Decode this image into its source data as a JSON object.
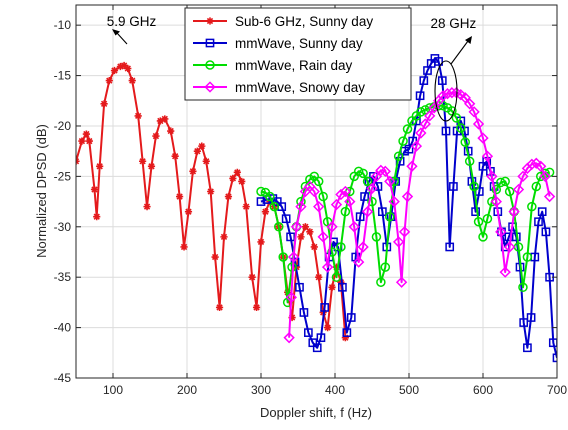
{
  "chart_data": {
    "type": "line",
    "title": "",
    "xlabel": "Doppler shift, f (Hz)",
    "ylabel": "Normalized DPSD (dB)",
    "xlim": [
      50,
      700
    ],
    "ylim": [
      -45,
      -8
    ],
    "xticks": [
      100,
      200,
      300,
      400,
      500,
      600,
      700
    ],
    "yticks": [
      -45,
      -40,
      -35,
      -30,
      -25,
      -20,
      -15,
      -10
    ],
    "grid": true,
    "legend_position": "top-center",
    "annotations": [
      {
        "text": "5.9 GHz",
        "x": 125,
        "y": -9.7
      },
      {
        "text": "28 GHz",
        "x": 560,
        "y": -9.9
      }
    ],
    "series": [
      {
        "name": "Sub-6 GHz, Sunny day",
        "color": "#e41a1c",
        "marker": "asterisk",
        "x": [
          50,
          58,
          64,
          68,
          75,
          78,
          82,
          88,
          95,
          102,
          110,
          115,
          120,
          126,
          134,
          140,
          146,
          152,
          158,
          164,
          170,
          178,
          184,
          190,
          196,
          202,
          208,
          214,
          220,
          226,
          232,
          238,
          244,
          250,
          256,
          262,
          268,
          274,
          280,
          288,
          294,
          300,
          306,
          312,
          318,
          324,
          330,
          336,
          342,
          348,
          354,
          360,
          366,
          372,
          378,
          384,
          390,
          396,
          402,
          408,
          414
        ],
        "y": [
          -23.5,
          -21.5,
          -20.8,
          -21.5,
          -26.3,
          -29,
          -24,
          -17.8,
          -15.5,
          -14.5,
          -14.1,
          -14,
          -14.3,
          -15.5,
          -19,
          -23.5,
          -28,
          -24,
          -21,
          -19.5,
          -19.3,
          -20.5,
          -23,
          -27,
          -32,
          -28.5,
          -24.5,
          -22.5,
          -22,
          -23.5,
          -26.5,
          -33,
          -38,
          -31,
          -27,
          -25.2,
          -24.6,
          -25.5,
          -28,
          -35,
          -38,
          -31.5,
          -28.5,
          -27.5,
          -28,
          -30,
          -33,
          -36.5,
          -39,
          -34,
          -31,
          -30,
          -30.5,
          -32,
          -35,
          -38.5,
          -40,
          -36,
          -34,
          -35.5,
          -41
        ]
      },
      {
        "name": "mmWave, Sunny day",
        "color": "#0000cc",
        "marker": "square",
        "x": [
          300,
          308,
          316,
          322,
          328,
          334,
          340,
          346,
          352,
          358,
          364,
          370,
          376,
          381,
          386,
          392,
          398,
          404,
          410,
          416,
          422,
          428,
          434,
          440,
          446,
          452,
          458,
          464,
          470,
          476,
          482,
          488,
          494,
          500,
          505,
          510,
          515,
          520,
          525,
          530,
          535,
          540,
          545,
          550,
          555,
          560,
          565,
          570,
          575,
          580,
          585,
          590,
          595,
          600,
          605,
          610,
          615,
          620,
          625,
          630,
          635,
          640,
          645,
          650,
          655,
          660,
          665,
          670,
          675,
          680,
          685,
          690,
          695,
          700
        ],
        "y": [
          -27.5,
          -27.3,
          -27.2,
          -27.5,
          -28,
          -29.2,
          -31,
          -33.5,
          -36,
          -38.5,
          -40.5,
          -41.5,
          -42,
          -41,
          -38,
          -33,
          -31.5,
          -32,
          -36,
          -40.5,
          -39,
          -33,
          -29,
          -27,
          -25.5,
          -25,
          -26,
          -28.5,
          -32,
          -29,
          -25.5,
          -23.5,
          -22.5,
          -22.3,
          -21.5,
          -19.5,
          -17,
          -15.5,
          -14.5,
          -13.8,
          -13.3,
          -13.6,
          -15.5,
          -20.5,
          -32,
          -26,
          -20.5,
          -19.5,
          -20.5,
          -22.5,
          -25.5,
          -28.5,
          -26.5,
          -24,
          -23.5,
          -24.5,
          -26,
          -28.5,
          -30.5,
          -32,
          -31,
          -30,
          -31,
          -34,
          -39.5,
          -42,
          -39,
          -33,
          -29.5,
          -28.5,
          -30.5,
          -35,
          -41.5,
          -43
        ]
      },
      {
        "name": "mmWave, Rain day",
        "color": "#00dd00",
        "marker": "circle",
        "x": [
          300,
          306,
          312,
          318,
          324,
          330,
          336,
          342,
          348,
          354,
          360,
          366,
          372,
          378,
          384,
          390,
          396,
          402,
          408,
          414,
          420,
          426,
          432,
          438,
          444,
          450,
          456,
          462,
          468,
          474,
          480,
          486,
          492,
          498,
          504,
          510,
          516,
          522,
          528,
          534,
          540,
          546,
          552,
          558,
          564,
          570,
          576,
          582,
          588,
          594,
          600,
          606,
          612,
          618,
          624,
          630,
          636,
          642,
          648,
          654,
          660,
          666,
          672,
          678,
          684,
          690
        ],
        "y": [
          -26.5,
          -26.6,
          -27,
          -28,
          -30,
          -33,
          -37.5,
          -34,
          -30,
          -27.5,
          -26,
          -25.3,
          -25,
          -25.5,
          -27,
          -29.5,
          -32.5,
          -35,
          -32,
          -28.5,
          -26.5,
          -25,
          -24.5,
          -24.7,
          -25.5,
          -27.5,
          -31,
          -35.5,
          -34,
          -29,
          -25.5,
          -23,
          -21.5,
          -20.3,
          -19.5,
          -19,
          -18.6,
          -18.4,
          -18.2,
          -18.1,
          -18,
          -18,
          -18.2,
          -18.5,
          -19.2,
          -20.2,
          -21.6,
          -23.5,
          -26,
          -29.5,
          -31,
          -29.2,
          -27.5,
          -26.3,
          -25.6,
          -25.5,
          -26.5,
          -28.5,
          -32,
          -36,
          -33,
          -28,
          -26,
          -25,
          -24.7,
          -24.6
        ]
      },
      {
        "name": "mmWave, Snowy day",
        "color": "#ff00ff",
        "marker": "diamond",
        "x": [
          338,
          341,
          344,
          348,
          354,
          360,
          366,
          372,
          378,
          384,
          390,
          396,
          402,
          408,
          414,
          420,
          426,
          432,
          438,
          444,
          450,
          456,
          462,
          468,
          474,
          480,
          486,
          490,
          494,
          498,
          504,
          510,
          516,
          522,
          528,
          534,
          540,
          546,
          552,
          558,
          564,
          570,
          576,
          582,
          588,
          594,
          600,
          606,
          612,
          618,
          624,
          630,
          636,
          642,
          648,
          654,
          660,
          666,
          672,
          678,
          684,
          690
        ],
        "y": [
          -41,
          -37,
          -33,
          -30,
          -28,
          -26.5,
          -26,
          -26.5,
          -28,
          -31,
          -34,
          -30,
          -27.8,
          -26.8,
          -26.5,
          -27.5,
          -30,
          -33.5,
          -32,
          -28.5,
          -26.2,
          -25,
          -24.4,
          -24.5,
          -25.5,
          -27.5,
          -31.5,
          -35.5,
          -30.5,
          -27,
          -24,
          -22,
          -20.7,
          -19.8,
          -19,
          -18.2,
          -17.5,
          -17,
          -16.8,
          -16.7,
          -16.7,
          -16.9,
          -17.2,
          -17.8,
          -18.6,
          -19.8,
          -21.2,
          -23,
          -25,
          -27.5,
          -30.5,
          -34.5,
          -32,
          -28.5,
          -26.3,
          -25,
          -24.2,
          -23.8,
          -23.7,
          -24,
          -25,
          -27
        ]
      }
    ]
  }
}
